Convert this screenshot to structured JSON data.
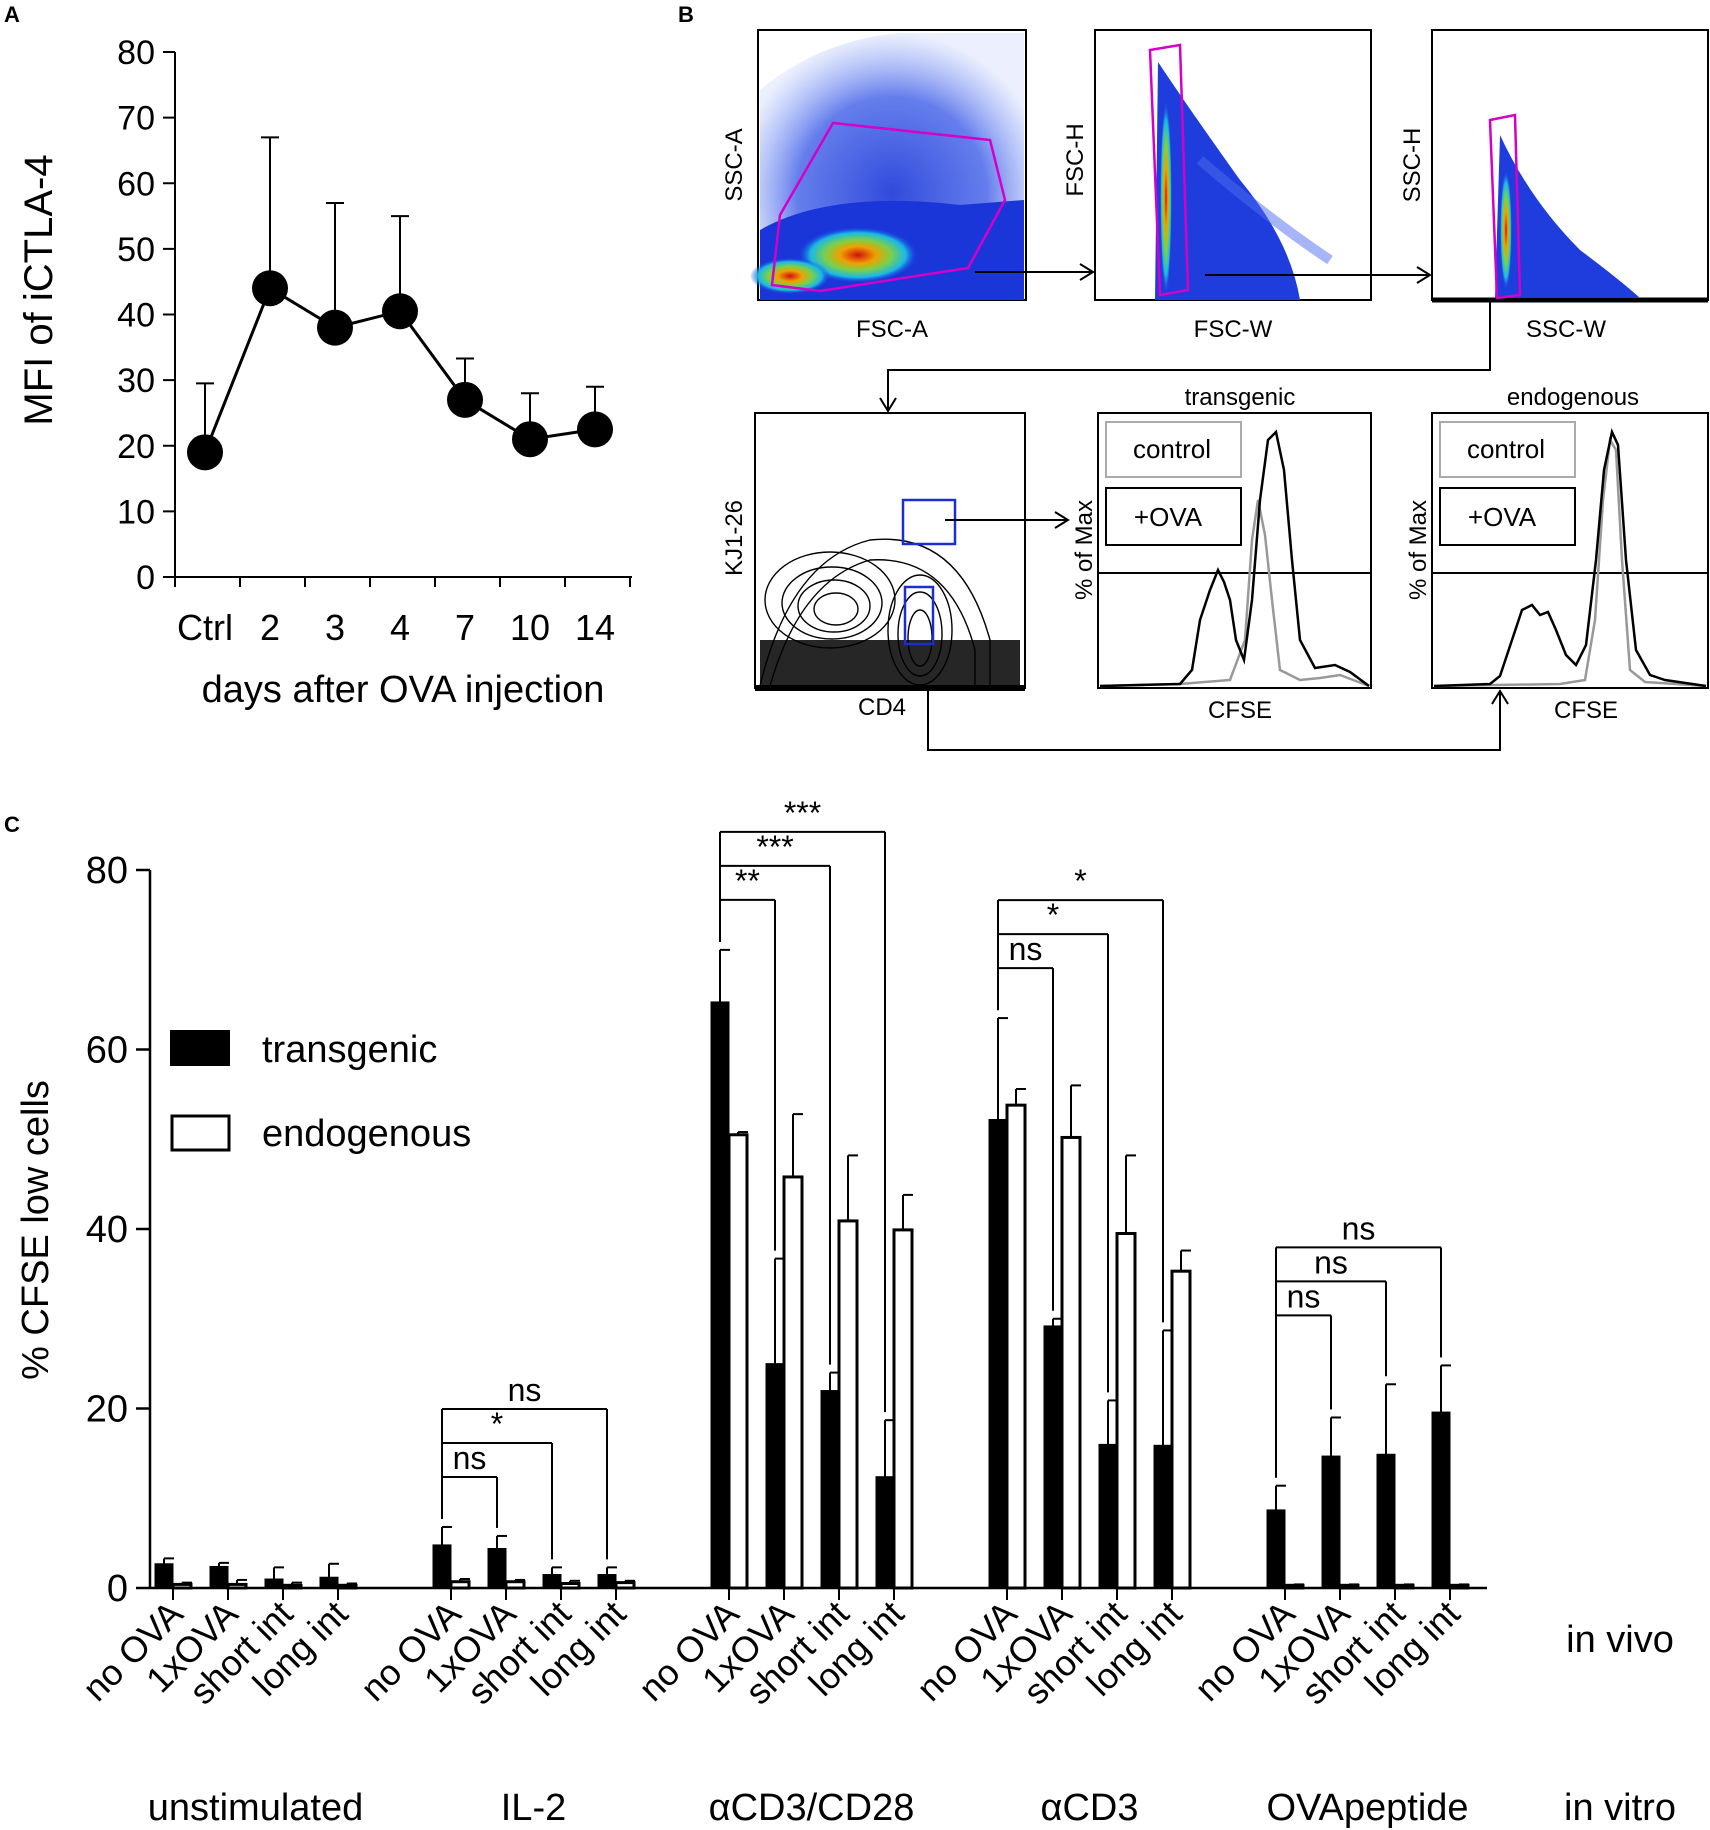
{
  "panel_labels": {
    "a": "A",
    "b": "B",
    "c": "C"
  },
  "panel_b": {
    "plots": [
      {
        "ylabel": "SSC-A",
        "xlabel": "FSC-A"
      },
      {
        "ylabel": "FSC-H",
        "xlabel": "FSC-W"
      },
      {
        "ylabel": "SSC-H",
        "xlabel": "SSC-W"
      },
      {
        "ylabel": "KJ1-26",
        "xlabel": "CD4"
      }
    ],
    "histograms": [
      {
        "title": "transgenic",
        "ylabel": "% of Max",
        "xlabel": "CFSE",
        "legend": [
          "control",
          "+OVA"
        ]
      },
      {
        "title": "endogenous",
        "ylabel": "% of Max",
        "xlabel": "CFSE",
        "legend": [
          "control",
          "+OVA"
        ]
      }
    ],
    "colors": {
      "gate_magenta": "#d400c8",
      "gate_blue": "#1a2fd0",
      "density_blue": "#1f3ddc"
    }
  },
  "chart_data": [
    {
      "type": "line",
      "panel": "A",
      "title": "",
      "xlabel": "days after OVA injection",
      "ylabel": "MFI of  iCTLA-4",
      "categories": [
        "Ctrl",
        "2",
        "3",
        "4",
        "7",
        "10",
        "14"
      ],
      "values": [
        19,
        44,
        38,
        40.5,
        27,
        21,
        22.5
      ],
      "errors": [
        10.5,
        23,
        19,
        14.5,
        6.3,
        7,
        6.5
      ],
      "yticks": [
        0,
        10,
        20,
        30,
        40,
        50,
        60,
        70,
        80
      ],
      "ylim": [
        0,
        80
      ]
    },
    {
      "type": "bar",
      "panel": "C",
      "ylabel": "% CFSE low cells",
      "ylim": [
        0,
        80
      ],
      "yticks": [
        0,
        20,
        40,
        60,
        80
      ],
      "in_vivo_label": "in vivo",
      "in_vitro_label": "in vitro",
      "in_vivo_conditions": [
        "no OVA",
        "1xOVA",
        "short int",
        "long int"
      ],
      "groups": [
        "unstimulated",
        "IL-2",
        "αCD3/CD28",
        "αCD3",
        "OVApeptide"
      ],
      "series": [
        {
          "name": "transgenic",
          "fill": "#000000",
          "values": [
            [
              2.7,
              2.4,
              1.0,
              1.2
            ],
            [
              4.8,
              4.4,
              1.5,
              1.5
            ],
            [
              65.3,
              25.0,
              22.0,
              12.4
            ],
            [
              52.2,
              29.2,
              16.0,
              15.9
            ],
            [
              8.7,
              14.7,
              14.9,
              19.6
            ]
          ],
          "errors": [
            [
              0.6,
              0.4,
              1.3,
              1.5
            ],
            [
              2.0,
              1.4,
              0.8,
              0.8
            ],
            [
              5.8,
              11.7,
              2.0,
              6.3
            ],
            [
              11.3,
              0.8,
              4.9,
              12.8
            ],
            [
              2.7,
              4.3,
              7.8,
              5.2
            ]
          ]
        },
        {
          "name": "endogenous",
          "fill": "#ffffff",
          "values": [
            [
              0.4,
              0.4,
              0.3,
              0.3
            ],
            [
              0.7,
              0.7,
              0.5,
              0.6
            ],
            [
              50.5,
              45.8,
              40.9,
              39.9
            ],
            [
              53.8,
              50.2,
              39.5,
              35.3
            ],
            [
              0.3,
              0.3,
              0.3,
              0.3
            ]
          ],
          "errors": [
            [
              0.2,
              0.5,
              0.3,
              0.2
            ],
            [
              0.3,
              0.2,
              0.3,
              0.2
            ],
            [
              0.3,
              7.0,
              7.3,
              3.9
            ],
            [
              1.8,
              5.8,
              8.7,
              2.3
            ],
            [
              0.1,
              0.1,
              0.1,
              0.1
            ]
          ]
        }
      ],
      "significance": [
        {
          "group": 1,
          "from": 0,
          "to": 1,
          "label": "ns"
        },
        {
          "group": 1,
          "from": 0,
          "to": 2,
          "label": "*"
        },
        {
          "group": 1,
          "from": 0,
          "to": 3,
          "label": "ns"
        },
        {
          "group": 2,
          "from": 0,
          "to": 1,
          "label": "**"
        },
        {
          "group": 2,
          "from": 0,
          "to": 2,
          "label": "***"
        },
        {
          "group": 2,
          "from": 0,
          "to": 3,
          "label": "***"
        },
        {
          "group": 3,
          "from": 0,
          "to": 1,
          "label": "ns"
        },
        {
          "group": 3,
          "from": 0,
          "to": 2,
          "label": "*"
        },
        {
          "group": 3,
          "from": 0,
          "to": 3,
          "label": "*"
        },
        {
          "group": 4,
          "from": 0,
          "to": 1,
          "label": "ns"
        },
        {
          "group": 4,
          "from": 0,
          "to": 2,
          "label": "ns"
        },
        {
          "group": 4,
          "from": 0,
          "to": 3,
          "label": "ns"
        }
      ]
    }
  ]
}
